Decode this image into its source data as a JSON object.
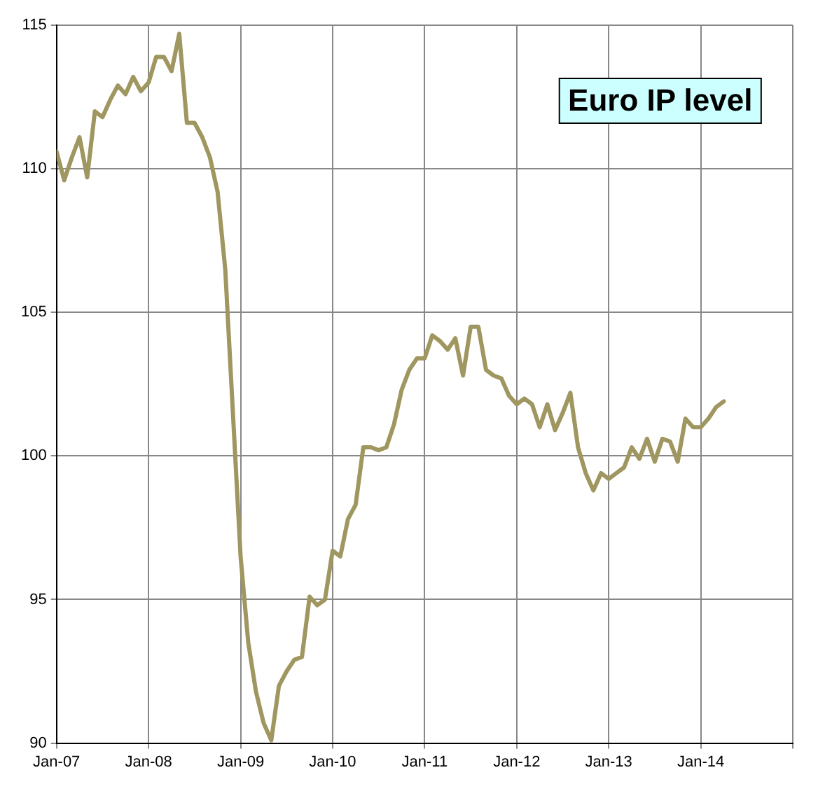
{
  "chart_data": {
    "type": "line",
    "title": "Euro IP level",
    "x": [
      "2007-01",
      "2007-02",
      "2007-03",
      "2007-04",
      "2007-05",
      "2007-06",
      "2007-07",
      "2007-08",
      "2007-09",
      "2007-10",
      "2007-11",
      "2007-12",
      "2008-01",
      "2008-02",
      "2008-03",
      "2008-04",
      "2008-05",
      "2008-06",
      "2008-07",
      "2008-08",
      "2008-09",
      "2008-10",
      "2008-11",
      "2008-12",
      "2009-01",
      "2009-02",
      "2009-03",
      "2009-04",
      "2009-05",
      "2009-06",
      "2009-07",
      "2009-08",
      "2009-09",
      "2009-10",
      "2009-11",
      "2009-12",
      "2010-01",
      "2010-02",
      "2010-03",
      "2010-04",
      "2010-05",
      "2010-06",
      "2010-07",
      "2010-08",
      "2010-09",
      "2010-10",
      "2010-11",
      "2010-12",
      "2011-01",
      "2011-02",
      "2011-03",
      "2011-04",
      "2011-05",
      "2011-06",
      "2011-07",
      "2011-08",
      "2011-09",
      "2011-10",
      "2011-11",
      "2011-12",
      "2012-01",
      "2012-02",
      "2012-03",
      "2012-04",
      "2012-05",
      "2012-06",
      "2012-07",
      "2012-08",
      "2012-09",
      "2012-10",
      "2012-11",
      "2012-12",
      "2013-01",
      "2013-02",
      "2013-03",
      "2013-04",
      "2013-05",
      "2013-06",
      "2013-07",
      "2013-08",
      "2013-09",
      "2013-10",
      "2013-11",
      "2013-12",
      "2014-01",
      "2014-02",
      "2014-03",
      "2014-04"
    ],
    "series": [
      {
        "color": "#a09660",
        "values": [
          110.6,
          109.6,
          110.4,
          111.1,
          109.7,
          112.0,
          111.8,
          112.4,
          112.9,
          112.6,
          113.2,
          112.7,
          113.0,
          113.9,
          113.9,
          113.4,
          114.7,
          111.6,
          111.6,
          111.1,
          110.4,
          109.2,
          106.5,
          101.5,
          96.5,
          93.5,
          91.8,
          90.7,
          90.1,
          92.0,
          92.5,
          92.9,
          93.0,
          95.1,
          94.8,
          95.0,
          96.7,
          96.5,
          97.8,
          98.3,
          100.3,
          100.3,
          100.2,
          100.3,
          101.1,
          102.3,
          103.0,
          103.4,
          103.4,
          104.2,
          104.0,
          103.7,
          104.1,
          102.8,
          104.5,
          104.5,
          103.0,
          102.8,
          102.7,
          102.1,
          101.8,
          102.0,
          101.8,
          101.0,
          101.8,
          100.9,
          101.5,
          102.2,
          100.3,
          99.4,
          98.8,
          99.4,
          99.2,
          99.4,
          99.6,
          100.3,
          99.9,
          100.6,
          99.8,
          100.6,
          100.5,
          99.8,
          101.3,
          101.0,
          101.0,
          101.3,
          101.7,
          101.9
        ]
      }
    ],
    "xlim": [
      "2007-01",
      "2015-01"
    ],
    "xticks": [
      {
        "value": "2007-01",
        "label": "Jan-07"
      },
      {
        "value": "2008-01",
        "label": "Jan-08"
      },
      {
        "value": "2009-01",
        "label": "Jan-09"
      },
      {
        "value": "2010-01",
        "label": "Jan-10"
      },
      {
        "value": "2011-01",
        "label": "Jan-11"
      },
      {
        "value": "2012-01",
        "label": "Jan-12"
      },
      {
        "value": "2013-01",
        "label": "Jan-13"
      },
      {
        "value": "2014-01",
        "label": "Jan-14"
      },
      {
        "value": "2015-01",
        "label": null
      }
    ],
    "ylim": [
      90,
      115
    ],
    "yticks": [
      90,
      95,
      100,
      105,
      110,
      115
    ],
    "grid": true,
    "legend": false,
    "marker": "none",
    "line_style": "solid"
  }
}
